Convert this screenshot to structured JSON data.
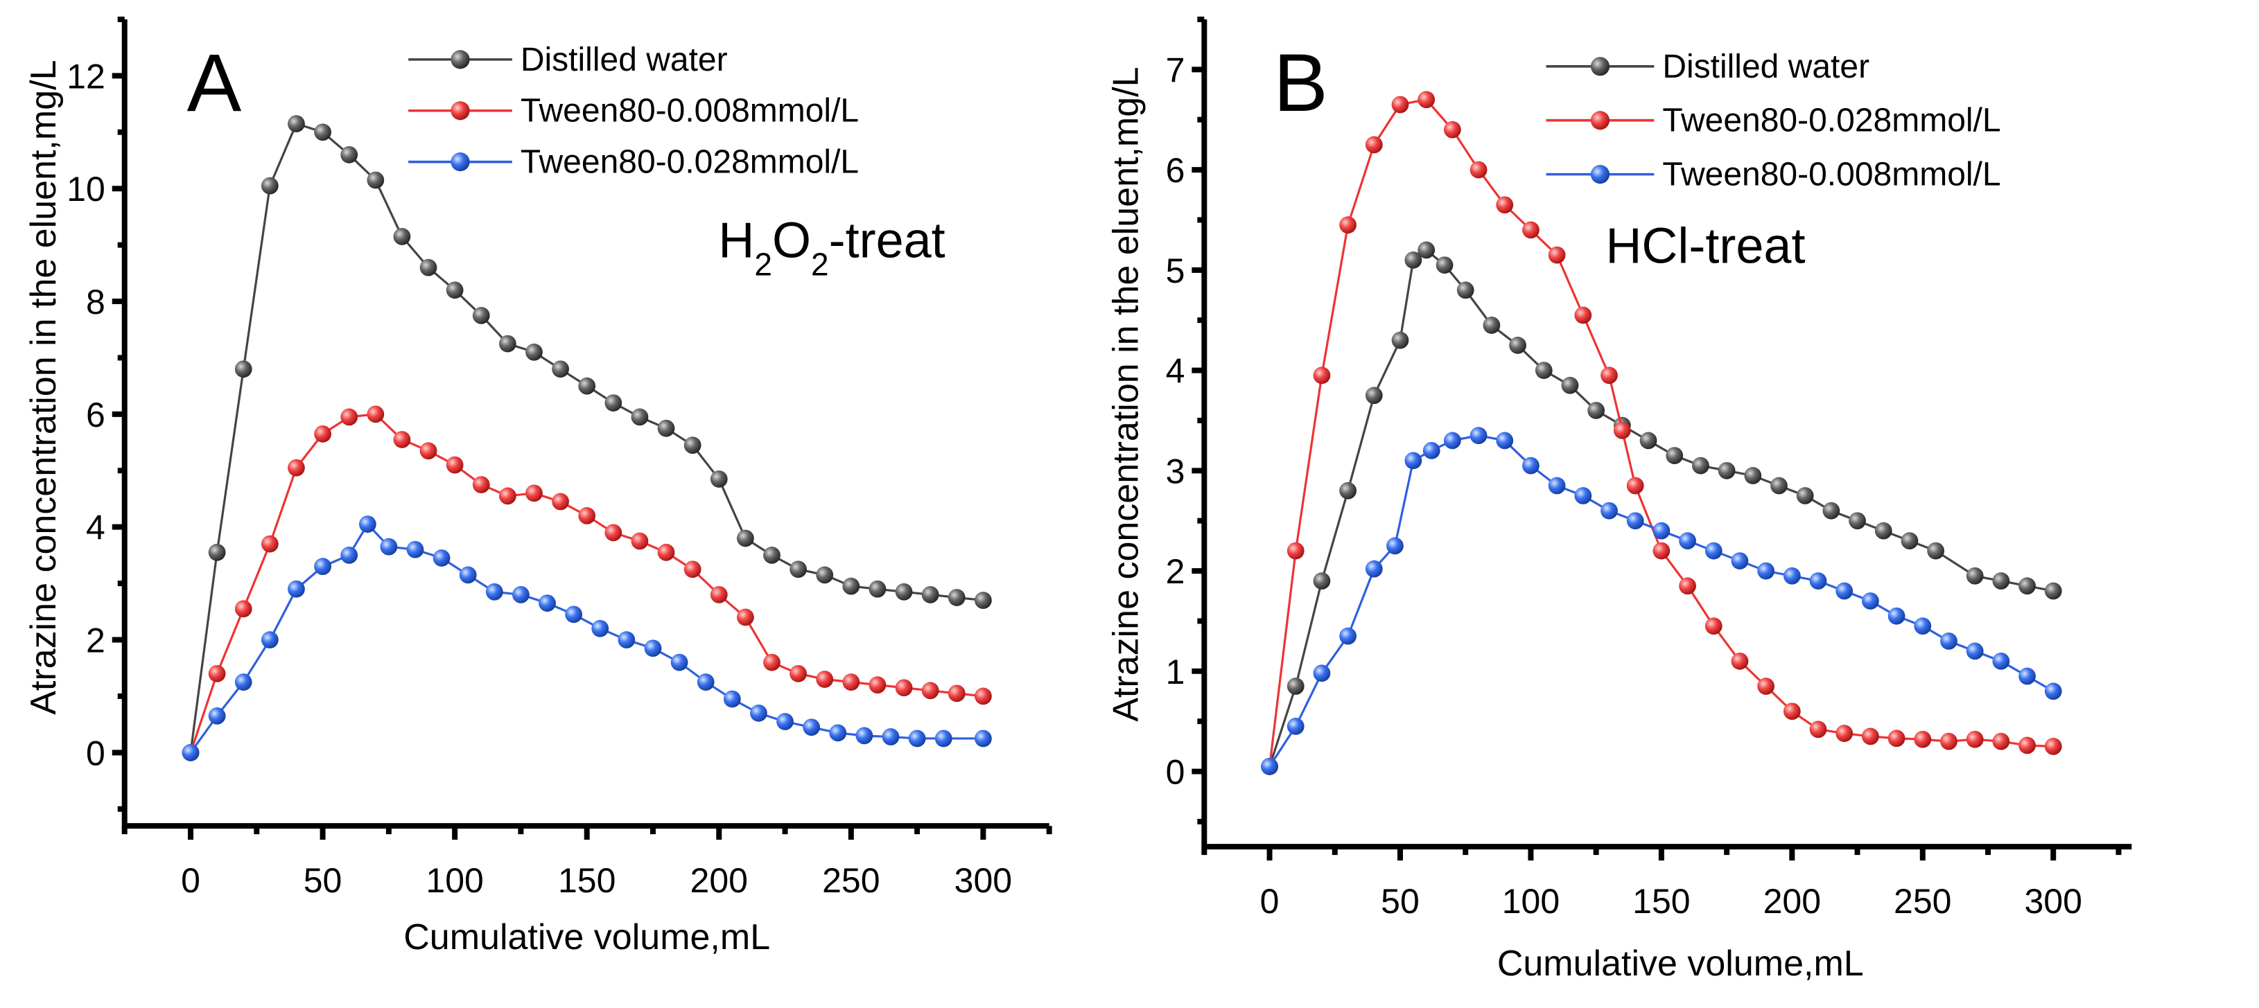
{
  "chart_data": [
    {
      "type": "line",
      "panel_label": "A",
      "annotation_parts": [
        "H",
        "2",
        "O",
        "2",
        "-treat"
      ],
      "xlabel": "Cumulative volume,mL",
      "ylabel": "Atrazine concentration in the eluent,mg/L",
      "xlim": [
        -25,
        325
      ],
      "ylim": [
        -1.3,
        13
      ],
      "xticks": [
        0,
        50,
        100,
        150,
        200,
        250,
        300
      ],
      "yticks": [
        0,
        2,
        4,
        6,
        8,
        10,
        12
      ],
      "legend_position": "top-center",
      "series": [
        {
          "name": "Distilled water",
          "color": "#444444",
          "x": [
            0,
            10,
            20,
            30,
            40,
            50,
            60,
            70,
            80,
            90,
            100,
            110,
            120,
            130,
            140,
            150,
            160,
            170,
            180,
            190,
            200,
            210,
            220,
            230,
            240,
            250,
            260,
            270,
            280,
            290,
            300
          ],
          "y": [
            0,
            3.55,
            6.8,
            10.05,
            11.15,
            11.0,
            10.6,
            10.15,
            9.15,
            8.6,
            8.2,
            7.75,
            7.25,
            7.1,
            6.8,
            6.5,
            6.2,
            5.95,
            5.75,
            5.45,
            4.85,
            3.8,
            3.5,
            3.25,
            3.15,
            2.95,
            2.9,
            2.85,
            2.8,
            2.75,
            2.7
          ]
        },
        {
          "name": "Tween80-0.008mmol/L",
          "color": "#ee3333",
          "x": [
            0,
            10,
            20,
            30,
            40,
            50,
            60,
            70,
            80,
            90,
            100,
            110,
            120,
            130,
            140,
            150,
            160,
            170,
            180,
            190,
            200,
            210,
            220,
            230,
            240,
            250,
            260,
            270,
            280,
            290,
            300
          ],
          "y": [
            0,
            1.4,
            2.55,
            3.7,
            5.05,
            5.65,
            5.95,
            6.0,
            5.55,
            5.35,
            5.1,
            4.75,
            4.55,
            4.6,
            4.45,
            4.2,
            3.9,
            3.75,
            3.55,
            3.25,
            2.8,
            2.4,
            1.6,
            1.4,
            1.3,
            1.25,
            1.2,
            1.15,
            1.1,
            1.05,
            1.0
          ]
        },
        {
          "name": "Tween80-0.028mmol/L",
          "color": "#2f5fe0",
          "x": [
            0,
            10,
            20,
            30,
            40,
            50,
            60,
            67,
            75,
            85,
            95,
            105,
            115,
            125,
            135,
            145,
            155,
            165,
            175,
            185,
            195,
            205,
            215,
            225,
            235,
            245,
            255,
            265,
            275,
            285,
            300
          ],
          "y": [
            0,
            0.65,
            1.25,
            2.0,
            2.9,
            3.3,
            3.5,
            4.05,
            3.65,
            3.6,
            3.45,
            3.15,
            2.85,
            2.8,
            2.65,
            2.45,
            2.2,
            2.0,
            1.85,
            1.6,
            1.25,
            0.95,
            0.7,
            0.55,
            0.45,
            0.35,
            0.3,
            0.28,
            0.25,
            0.25,
            0.25
          ]
        }
      ]
    },
    {
      "type": "line",
      "panel_label": "B",
      "annotation_parts": [
        "HCl-treat"
      ],
      "xlabel": "Cumulative volume,mL",
      "ylabel": "Atrazine concentration in the eluent,mg/L",
      "xlim": [
        -25,
        330
      ],
      "ylim": [
        -0.75,
        7.5
      ],
      "xticks": [
        0,
        50,
        100,
        150,
        200,
        250,
        300
      ],
      "yticks": [
        0,
        1,
        2,
        3,
        4,
        5,
        6,
        7
      ],
      "legend_position": "top-center",
      "series": [
        {
          "name": "Distilled water",
          "color": "#444444",
          "x": [
            0,
            10,
            20,
            30,
            40,
            50,
            55,
            60,
            67,
            75,
            85,
            95,
            105,
            115,
            125,
            135,
            145,
            155,
            165,
            175,
            185,
            195,
            205,
            215,
            225,
            235,
            245,
            255,
            270,
            280,
            290,
            300
          ],
          "y": [
            0.05,
            0.85,
            1.9,
            2.8,
            3.75,
            4.3,
            5.1,
            5.2,
            5.05,
            4.8,
            4.45,
            4.25,
            4.0,
            3.85,
            3.6,
            3.45,
            3.3,
            3.15,
            3.05,
            3.0,
            2.95,
            2.85,
            2.75,
            2.6,
            2.5,
            2.4,
            2.3,
            2.2,
            1.95,
            1.9,
            1.85,
            1.8
          ]
        },
        {
          "name": "Tween80-0.028mmol/L",
          "color": "#ee3333",
          "x": [
            0,
            10,
            20,
            30,
            40,
            50,
            60,
            70,
            80,
            90,
            100,
            110,
            120,
            130,
            135,
            140,
            150,
            160,
            170,
            180,
            190,
            200,
            210,
            220,
            230,
            240,
            250,
            260,
            270,
            280,
            290,
            300
          ],
          "y": [
            0.05,
            2.2,
            3.95,
            5.45,
            6.25,
            6.65,
            6.7,
            6.4,
            6.0,
            5.65,
            5.4,
            5.15,
            4.55,
            3.95,
            3.4,
            2.85,
            2.2,
            1.85,
            1.45,
            1.1,
            0.85,
            0.6,
            0.42,
            0.38,
            0.35,
            0.33,
            0.32,
            0.3,
            0.32,
            0.3,
            0.26,
            0.25
          ]
        },
        {
          "name": "Tween80-0.008mmol/L",
          "color": "#2f5fe0",
          "x": [
            0,
            10,
            20,
            30,
            40,
            48,
            55,
            62,
            70,
            80,
            90,
            100,
            110,
            120,
            130,
            140,
            150,
            160,
            170,
            180,
            190,
            200,
            210,
            220,
            230,
            240,
            250,
            260,
            270,
            280,
            290,
            300
          ],
          "y": [
            0.05,
            0.45,
            0.98,
            1.35,
            2.02,
            2.25,
            3.1,
            3.2,
            3.3,
            3.35,
            3.3,
            3.05,
            2.85,
            2.75,
            2.6,
            2.5,
            2.4,
            2.3,
            2.2,
            2.1,
            2.0,
            1.95,
            1.9,
            1.8,
            1.7,
            1.55,
            1.45,
            1.3,
            1.2,
            1.1,
            0.95,
            0.8
          ]
        }
      ]
    }
  ]
}
